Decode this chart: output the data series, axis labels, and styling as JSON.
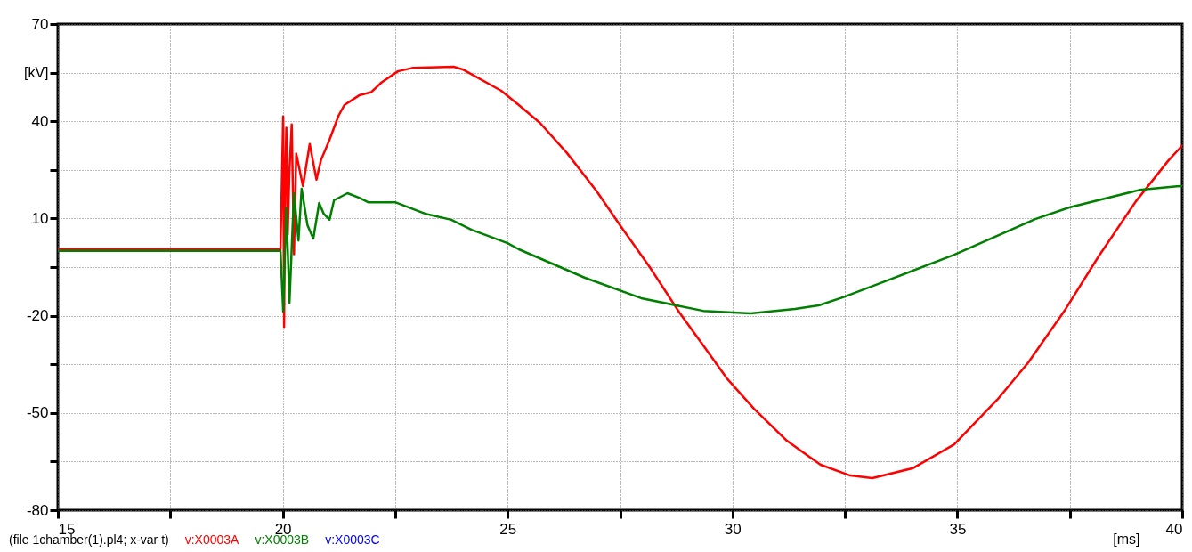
{
  "chart_data": {
    "type": "line",
    "xlabel": "[ms]",
    "ylabel": "[kV]",
    "annotations": [
      "(file 1chamber(1).pl4; x-var t)"
    ],
    "xlim": [
      15,
      40
    ],
    "xticks": [
      15,
      {
        "value": 17.5,
        "label": null
      },
      20,
      {
        "value": 22.5,
        "label": null
      },
      25,
      {
        "value": 27.5,
        "label": null
      },
      30,
      {
        "value": 32.5,
        "label": null
      },
      35,
      {
        "value": 37.5,
        "label": null
      },
      40
    ],
    "ylim": [
      -80,
      70
    ],
    "yticks": [
      70,
      {
        "value": 55,
        "label": null
      },
      40,
      {
        "value": 25,
        "label": null
      },
      10,
      {
        "value": -5,
        "label": null
      },
      -20,
      {
        "value": -35,
        "label": null
      },
      -50,
      {
        "value": -65,
        "label": null
      },
      -80
    ],
    "grid": true,
    "legend": "bottom",
    "line_style": "solid",
    "series": [
      {
        "name": "v:X0003A",
        "color": "#ff0000",
        "x": [
          15,
          17,
          19.95,
          20.01,
          20.03,
          20.05,
          20.08,
          20.11,
          20.15,
          20.2,
          20.25,
          20.3,
          20.45,
          20.6,
          20.75,
          20.85,
          21.04,
          21.24,
          21.37,
          21.7,
          21.97,
          22.2,
          22.56,
          22.9,
          23.8,
          24.0,
          24.86,
          25.25,
          25.72,
          26.32,
          26.98,
          27.5,
          28.16,
          28.82,
          29.35,
          29.89,
          30.48,
          31.21,
          31.96,
          32.62,
          33.11,
          34.02,
          34.93,
          35.92,
          36.58,
          37.41,
          38.14,
          38.97,
          39.7,
          40
        ],
        "values": [
          0.5,
          0.5,
          0.5,
          41.5,
          -23.5,
          20,
          38,
          5,
          25,
          39,
          -1,
          30,
          20,
          33,
          22,
          28,
          34.3,
          41.7,
          45,
          48,
          49,
          52,
          55.4,
          56.5,
          56.8,
          56,
          49.4,
          45,
          39.5,
          30.2,
          18.4,
          7.9,
          -5,
          -19,
          -29.2,
          -39.6,
          -48.7,
          -58.6,
          -66,
          -69.3,
          -70.1,
          -67,
          -59.7,
          -45.4,
          -34.4,
          -17.9,
          -1.7,
          15.3,
          28,
          32.5
        ]
      },
      {
        "name": "v:X0003B",
        "color": "#008000",
        "x": [
          15,
          17,
          19.95,
          20.01,
          20.08,
          20.15,
          20.25,
          20.35,
          20.42,
          20.55,
          20.68,
          20.81,
          20.91,
          21.04,
          21.14,
          21.44,
          21.7,
          21.9,
          22.5,
          23.16,
          23.75,
          24.2,
          25.0,
          25.25,
          26.72,
          27.97,
          29.35,
          30.4,
          31.39,
          31.92,
          32.46,
          33.45,
          34.93,
          36.73,
          37.49,
          39.05,
          39.88,
          40
        ],
        "values": [
          0,
          0,
          0,
          -18.7,
          13.4,
          -16,
          17.8,
          3.2,
          19.2,
          7.9,
          3.8,
          14.8,
          11.5,
          9.6,
          15.6,
          17.8,
          16.4,
          15,
          15,
          11.5,
          9.6,
          6.5,
          2.4,
          0.5,
          -8.3,
          -14.6,
          -18.5,
          -19.3,
          -17.9,
          -16.8,
          -14.3,
          -9.1,
          -1.2,
          9.8,
          13.4,
          18.8,
          19.9,
          20
        ]
      },
      {
        "name": "v:X0003C",
        "color": "#0000ff"
      }
    ]
  }
}
